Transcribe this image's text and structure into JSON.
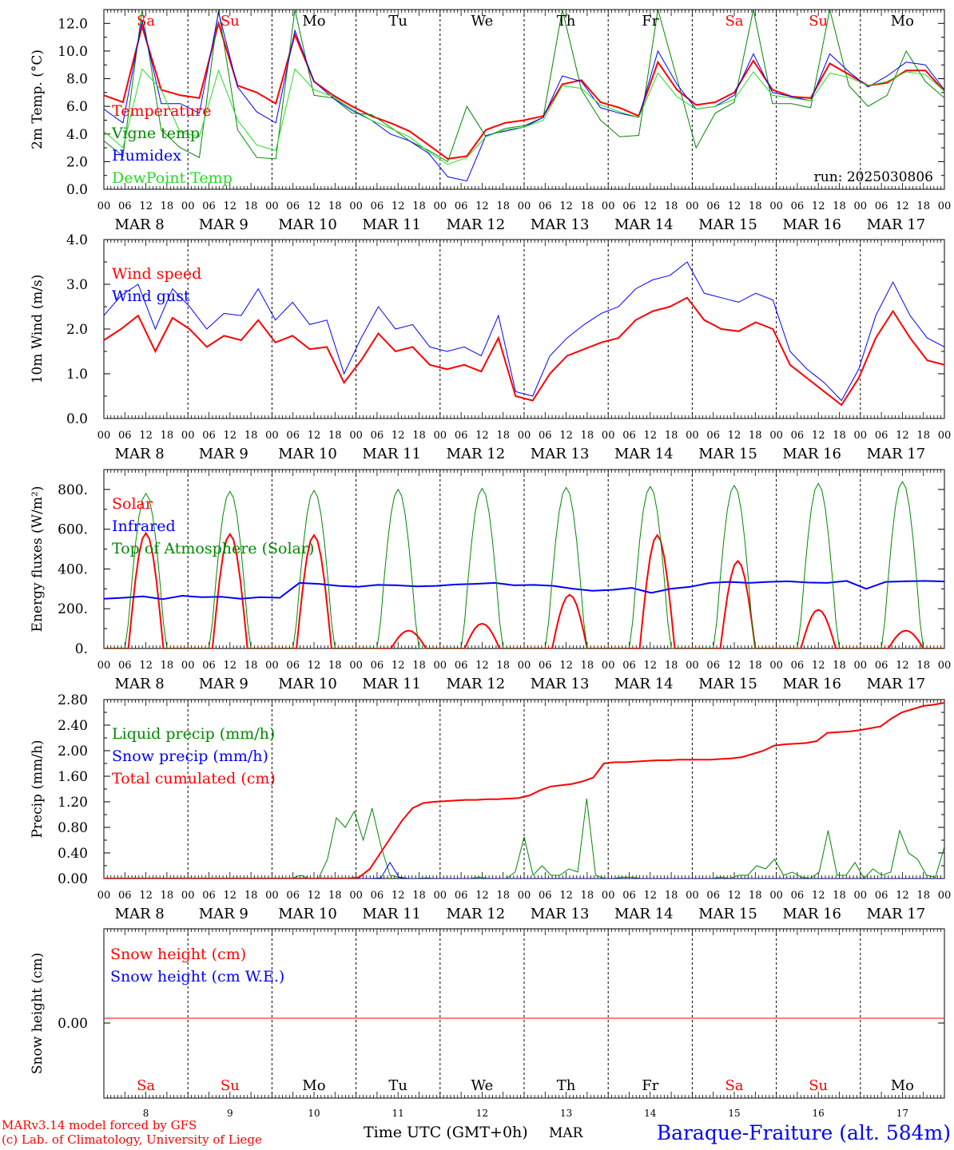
{
  "run_label": "run: 2025030806",
  "footer": {
    "model_line": "MARv3.14 model forced by GFS",
    "credit_line": "(c) Lab. of Climatology, University of Liege",
    "time_label": "Time UTC (GMT+0h)",
    "month_label": "MAR",
    "station_title": "Baraque-Fraiture (alt. 584m)"
  },
  "colors": {
    "red": "#ff0000",
    "green": "#008800",
    "blue": "#0000ff",
    "lightgreen": "#22dd22"
  },
  "days": {
    "names": [
      "Sa",
      "Su",
      "Mo",
      "Tu",
      "We",
      "Th",
      "Fr",
      "Sa",
      "Su",
      "Mo"
    ],
    "name_colors": [
      "#ff0000",
      "#ff0000",
      "#000000",
      "#000000",
      "#000000",
      "#000000",
      "#000000",
      "#ff0000",
      "#ff0000",
      "#000000"
    ],
    "date_labels": [
      "MAR  8",
      "MAR  9",
      "MAR 10",
      "MAR 11",
      "MAR 12",
      "MAR 13",
      "MAR 14",
      "MAR 15",
      "MAR 16",
      "MAR 17"
    ],
    "numbers": [
      "8",
      "9",
      "10",
      "11",
      "12",
      "13",
      "14",
      "15",
      "16",
      "17"
    ],
    "hour_ticks": [
      "00",
      "06",
      "12",
      "18"
    ],
    "end_tick": "00"
  },
  "chart_data": [
    {
      "type": "line",
      "ylabel": "2m Temp. (°C)",
      "ylim": [
        0,
        13
      ],
      "yticks": [
        "0.0",
        "2.0",
        "4.0",
        "6.0",
        "8.0",
        "10.0",
        "12.0"
      ],
      "ytick_values": [
        0,
        2,
        4,
        6,
        8,
        10,
        12
      ],
      "x_step_hours": 6,
      "series": [
        {
          "name": "Temperature",
          "color": "#ff0000",
          "width": 2,
          "values": [
            6.8,
            6.3,
            11.8,
            7.2,
            6.8,
            6.6,
            12.0,
            7.5,
            7.0,
            6.2,
            11.2,
            7.8,
            6.8,
            6.0,
            5.3,
            4.8,
            4.2,
            3.2,
            2.2,
            2.4,
            4.3,
            4.8,
            5.0,
            5.3,
            7.6,
            7.9,
            6.3,
            5.9,
            5.3,
            9.2,
            7.2,
            6.1,
            6.3,
            7.0,
            9.3,
            7.2,
            6.7,
            6.6,
            9.1,
            8.3,
            7.5,
            7.7,
            8.6,
            8.6,
            7.1
          ]
        },
        {
          "name": "Vigne temp",
          "color": "#008800",
          "width": 1,
          "values": [
            3.5,
            2.4,
            13.0,
            4.3,
            3.0,
            2.3,
            13.0,
            4.3,
            2.3,
            2.2,
            13.0,
            6.8,
            6.6,
            5.5,
            5.4,
            4.5,
            3.5,
            2.8,
            2.0,
            6.0,
            3.8,
            4.4,
            4.6,
            5.2,
            13.0,
            7.2,
            5.0,
            3.8,
            3.9,
            13.0,
            8.0,
            3.0,
            5.5,
            6.3,
            13.0,
            6.2,
            6.2,
            5.9,
            13.0,
            7.5,
            6.0,
            6.8,
            10.0,
            7.8,
            6.6
          ]
        },
        {
          "name": "Humidex",
          "color": "#0000ff",
          "width": 1,
          "values": [
            5.8,
            4.8,
            12.2,
            6.2,
            6.2,
            5.5,
            12.8,
            7.4,
            5.6,
            4.8,
            11.5,
            7.8,
            6.6,
            5.7,
            5.0,
            4.0,
            3.5,
            2.6,
            0.9,
            0.6,
            3.9,
            4.2,
            4.5,
            5.2,
            8.2,
            7.8,
            5.9,
            5.5,
            5.2,
            10.0,
            7.6,
            5.8,
            6.0,
            6.8,
            9.8,
            7.0,
            6.7,
            6.4,
            9.8,
            8.5,
            7.4,
            8.2,
            9.2,
            9.0,
            7.2
          ]
        },
        {
          "name": "DewPoint Temp",
          "color": "#22dd22",
          "width": 1,
          "values": [
            4.2,
            3.0,
            8.7,
            7.2,
            4.1,
            3.8,
            8.6,
            5.0,
            3.2,
            2.8,
            8.7,
            7.2,
            6.7,
            5.8,
            5.0,
            4.4,
            3.8,
            2.7,
            1.8,
            2.3,
            3.8,
            4.3,
            4.5,
            5.0,
            7.5,
            7.3,
            6.1,
            5.6,
            5.2,
            8.4,
            6.7,
            5.8,
            6.0,
            6.5,
            8.5,
            6.8,
            6.6,
            6.4,
            8.4,
            8.1,
            7.5,
            7.8,
            8.5,
            8.3,
            7.1
          ]
        }
      ]
    },
    {
      "type": "line",
      "ylabel": "10m Wind (m/s)",
      "ylim": [
        0,
        4
      ],
      "yticks": [
        "0.0",
        "1.0",
        "2.0",
        "3.0",
        "4.0"
      ],
      "ytick_values": [
        0,
        1,
        2,
        3,
        4
      ],
      "x_step_hours": 6,
      "series": [
        {
          "name": "Wind speed",
          "color": "#ff0000",
          "width": 2,
          "values": [
            1.75,
            2.0,
            2.3,
            1.5,
            2.25,
            2.0,
            1.6,
            1.85,
            1.75,
            2.2,
            1.7,
            1.85,
            1.55,
            1.6,
            0.8,
            1.3,
            1.9,
            1.5,
            1.6,
            1.2,
            1.1,
            1.2,
            1.05,
            1.8,
            0.5,
            0.4,
            1.0,
            1.4,
            1.55,
            1.7,
            1.8,
            2.2,
            2.4,
            2.5,
            2.7,
            2.2,
            2.0,
            1.95,
            2.15,
            2.0,
            1.2,
            0.9,
            0.6,
            0.3,
            0.9,
            1.8,
            2.4,
            1.8,
            1.3,
            1.2
          ]
        },
        {
          "name": "Wind gust",
          "color": "#0000ff",
          "width": 1,
          "values": [
            2.3,
            2.75,
            3.0,
            2.0,
            2.9,
            2.5,
            2.0,
            2.35,
            2.3,
            2.9,
            2.2,
            2.6,
            2.1,
            2.2,
            1.0,
            1.8,
            2.5,
            2.0,
            2.1,
            1.6,
            1.5,
            1.6,
            1.4,
            2.3,
            0.6,
            0.5,
            1.4,
            1.8,
            2.1,
            2.35,
            2.5,
            2.9,
            3.1,
            3.2,
            3.5,
            2.8,
            2.7,
            2.6,
            2.8,
            2.65,
            1.5,
            1.1,
            0.8,
            0.4,
            1.1,
            2.3,
            3.05,
            2.3,
            1.8,
            1.6
          ]
        }
      ]
    },
    {
      "type": "line",
      "ylabel": "Energy fluxes (W/m²)",
      "ylim": [
        0,
        900
      ],
      "yticks": [
        "0.",
        "200.",
        "400.",
        "600.",
        "800."
      ],
      "ytick_values": [
        0,
        200,
        400,
        600,
        800
      ],
      "x_step_hours": 1,
      "series": [
        {
          "name": "Solar",
          "color": "#ff0000",
          "width": 2,
          "peaks": [
            580,
            575,
            570,
            90,
            125,
            270,
            570,
            440,
            195,
            90
          ],
          "peak_hours": [
            12,
            12,
            12,
            15,
            12,
            13,
            14,
            13,
            12,
            13
          ],
          "halfwidth": 5
        },
        {
          "name": "Infrared",
          "color": "#0000ff",
          "width": 2,
          "values": [
            250,
            255,
            262,
            248,
            265,
            258,
            260,
            250,
            258,
            255,
            330,
            325,
            315,
            310,
            320,
            318,
            312,
            315,
            322,
            325,
            330,
            318,
            320,
            315,
            300,
            290,
            295,
            305,
            280,
            300,
            310,
            330,
            335,
            330,
            335,
            338,
            332,
            330,
            340,
            300,
            335,
            338,
            340,
            337
          ]
        },
        {
          "name": "Top of Atmosphere (Solar)",
          "color": "#008800",
          "width": 1,
          "peaks": [
            780,
            790,
            795,
            800,
            805,
            810,
            815,
            820,
            830,
            840
          ],
          "peak_hours": [
            12,
            12,
            12,
            12,
            12,
            12,
            12,
            12,
            12,
            12
          ],
          "halfwidth": 5.6
        }
      ]
    },
    {
      "type": "line",
      "ylabel": "Precip (mm/h)",
      "ylim": [
        0,
        2.8
      ],
      "yticks": [
        "0.00",
        "0.40",
        "0.80",
        "1.20",
        "1.60",
        "2.00",
        "2.40",
        "2.80"
      ],
      "ytick_values": [
        0,
        0.4,
        0.8,
        1.2,
        1.6,
        2.0,
        2.4,
        2.8
      ],
      "x_step_hours": 3,
      "series": [
        {
          "name": "Liquid precip (mm/h)",
          "color": "#008800",
          "width": 1,
          "values": [
            0,
            0,
            0,
            0,
            0,
            0,
            0,
            0,
            0,
            0,
            0,
            0,
            0,
            0,
            0,
            0,
            0,
            0,
            0,
            0,
            0,
            0,
            0.05,
            0,
            0,
            0.3,
            0.95,
            0.8,
            1.05,
            0.6,
            1.1,
            0.5,
            0.05,
            0.02,
            0,
            0,
            0.01,
            0,
            0,
            0,
            0,
            0,
            0.02,
            0,
            0,
            0,
            0.1,
            0.65,
            0.05,
            0.2,
            0.05,
            0.05,
            0.15,
            0.1,
            1.25,
            0.05,
            0,
            0,
            0.02,
            0.02,
            0,
            0,
            0,
            0,
            0,
            0,
            0,
            0,
            0,
            0.02,
            0,
            0.05,
            0.05,
            0.2,
            0.15,
            0.3,
            0.05,
            0.1,
            0.02,
            0,
            0.1,
            0.75,
            0.05,
            0.05,
            0.25,
            0,
            0.15,
            0.05,
            0.1,
            0.75,
            0.4,
            0.3,
            0.05,
            0.02,
            0.5
          ]
        },
        {
          "name": "Snow precip (mm/h)",
          "color": "#0000ff",
          "width": 1,
          "values": [
            0,
            0,
            0,
            0,
            0,
            0,
            0,
            0,
            0,
            0,
            0,
            0,
            0,
            0,
            0,
            0,
            0,
            0,
            0,
            0,
            0,
            0,
            0,
            0,
            0,
            0,
            0,
            0,
            0,
            0,
            0,
            0.01,
            0.25,
            0.02,
            0,
            0,
            0,
            0,
            0,
            0,
            0,
            0,
            0,
            0,
            0,
            0,
            0,
            0,
            0,
            0,
            0,
            0,
            0,
            0,
            0,
            0,
            0,
            0,
            0,
            0,
            0,
            0,
            0,
            0,
            0,
            0,
            0,
            0,
            0,
            0,
            0,
            0,
            0,
            0,
            0,
            0,
            0,
            0,
            0,
            0,
            0,
            0,
            0,
            0,
            0,
            0,
            0,
            0,
            0,
            0,
            0,
            0,
            0,
            0,
            0
          ]
        },
        {
          "name": "Total cumulated (cm)",
          "color": "#ff0000",
          "width": 2,
          "values": [
            0,
            0,
            0,
            0,
            0,
            0,
            0,
            0,
            0,
            0,
            0,
            0,
            0,
            0,
            0,
            0,
            0,
            0,
            0,
            0,
            0,
            0,
            0,
            0,
            0.02,
            0.15,
            0.4,
            0.65,
            0.9,
            1.1,
            1.18,
            1.2,
            1.21,
            1.22,
            1.23,
            1.23,
            1.24,
            1.24,
            1.25,
            1.26,
            1.3,
            1.38,
            1.44,
            1.46,
            1.48,
            1.52,
            1.58,
            1.8,
            1.82,
            1.82,
            1.83,
            1.84,
            1.85,
            1.85,
            1.86,
            1.86,
            1.86,
            1.86,
            1.87,
            1.88,
            1.9,
            1.95,
            2.0,
            2.08,
            2.1,
            2.11,
            2.12,
            2.15,
            2.28,
            2.29,
            2.3,
            2.32,
            2.35,
            2.38,
            2.5,
            2.6,
            2.65,
            2.7,
            2.72,
            2.75
          ]
        }
      ]
    },
    {
      "type": "line",
      "ylabel": "Snow height (cm)",
      "yticks": [
        "0.00"
      ],
      "ytick_values": [
        0
      ],
      "series": [
        {
          "name": "Snow height (cm)",
          "color": "#ff0000",
          "width": 1,
          "values": [
            0,
            0
          ]
        },
        {
          "name": "Snow height (cm W.E.)",
          "color": "#0000ff",
          "width": 1,
          "values": []
        }
      ]
    }
  ]
}
